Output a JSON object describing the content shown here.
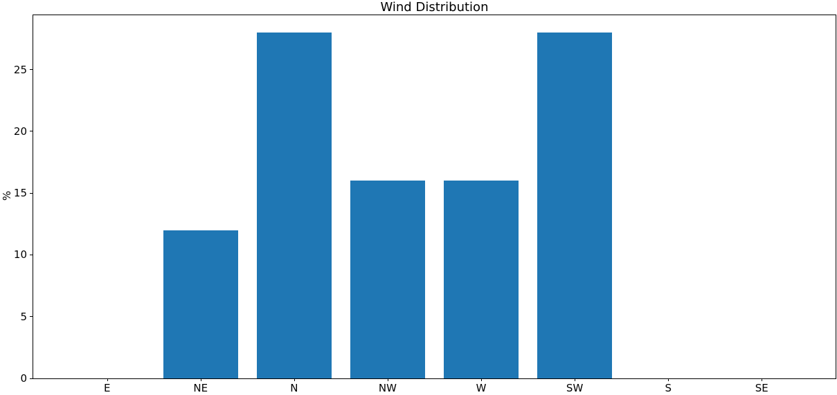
{
  "chart_data": {
    "type": "bar",
    "title": "Wind Distribution",
    "xlabel": "",
    "ylabel": "%",
    "categories": [
      "E",
      "NE",
      "N",
      "NW",
      "W",
      "SW",
      "S",
      "SE"
    ],
    "values": [
      0,
      12,
      28,
      16,
      16,
      28,
      0,
      0
    ],
    "yticks": [
      0,
      5,
      10,
      15,
      20,
      25
    ],
    "ylim": [
      0,
      29.4
    ],
    "xlim": [
      -0.79,
      7.79
    ],
    "bar_width": 0.8,
    "bar_color": "#1f77b4",
    "axis_color": "#000000",
    "background_color": "#ffffff",
    "grid": false,
    "legend": null
  }
}
